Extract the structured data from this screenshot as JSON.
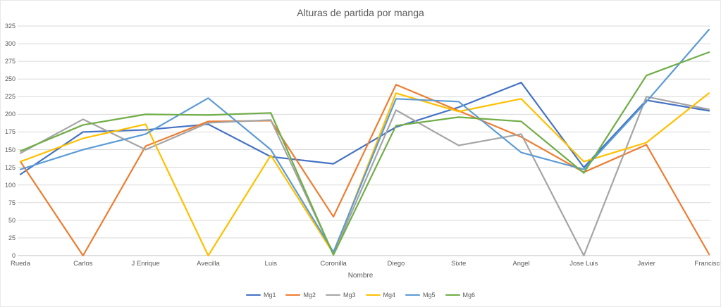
{
  "chart": {
    "title": "Alturas de partida por manga",
    "x_axis_title": "Nombre"
  },
  "chart_data": {
    "type": "line",
    "title": "Alturas de partida por manga",
    "xlabel": "Nombre",
    "ylabel": "",
    "categories": [
      "Rueda",
      "Carlos",
      "J Enrique",
      "Avecilla",
      "Luis",
      "Coronilla",
      "Diego",
      "Sixte",
      "Angel",
      "Jose Luis",
      "Javier",
      "Francisco"
    ],
    "series": [
      {
        "name": "Mg1",
        "color": "#4472C4",
        "values": [
          115,
          175,
          178,
          186,
          140,
          130,
          182,
          210,
          245,
          125,
          220,
          205
        ]
      },
      {
        "name": "Mg2",
        "color": "#ED7D31",
        "values": [
          133,
          0,
          155,
          190,
          191,
          55,
          242,
          205,
          168,
          118,
          157,
          2
        ]
      },
      {
        "name": "Mg3",
        "color": "#A5A5A5",
        "values": [
          145,
          193,
          150,
          188,
          192,
          2,
          206,
          156,
          172,
          0,
          225,
          207
        ]
      },
      {
        "name": "Mg4",
        "color": "#FFC000",
        "values": [
          133,
          166,
          186,
          0,
          142,
          3,
          230,
          204,
          222,
          133,
          160,
          230
        ]
      },
      {
        "name": "Mg5",
        "color": "#5B9BD5",
        "values": [
          122,
          150,
          172,
          223,
          150,
          5,
          222,
          218,
          146,
          122,
          218,
          320
        ]
      },
      {
        "name": "Mg6",
        "color": "#70AD47",
        "values": [
          148,
          185,
          200,
          199,
          202,
          1,
          184,
          196,
          190,
          117,
          255,
          288
        ]
      }
    ],
    "ylim": [
      0,
      325
    ],
    "y_tick_step": 25,
    "grid": true,
    "gridline_color": "#d9d9d9",
    "axis_line_color": "#bfbfbf",
    "legend_position": "bottom"
  }
}
